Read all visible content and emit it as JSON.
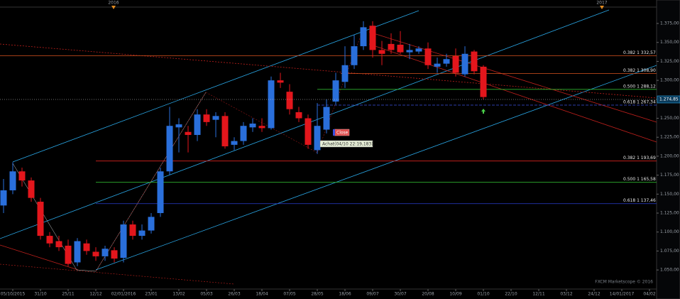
{
  "chart_data": {
    "type": "candlestick",
    "up_color": "#2a6fdb",
    "down_color": "#e3161c",
    "ylim": [
      1026.7,
      1394.7
    ],
    "yticks": [
      {
        "value": 1050,
        "label": "1.050,00"
      },
      {
        "value": 1075,
        "label": "1.075,00"
      },
      {
        "value": 1100,
        "label": "1.100,00"
      },
      {
        "value": 1125,
        "label": "1.125,00"
      },
      {
        "value": 1150,
        "label": "1.150,00"
      },
      {
        "value": 1175,
        "label": "1.175,00"
      },
      {
        "value": 1200,
        "label": "1.200,00"
      },
      {
        "value": 1225,
        "label": "1.225,00"
      },
      {
        "value": 1250,
        "label": "1.250,00"
      },
      {
        "value": 1300,
        "label": "1.300,00"
      },
      {
        "value": 1325,
        "label": "1.325,00"
      },
      {
        "value": 1350,
        "label": "1.350,00"
      },
      {
        "value": 1375,
        "label": "1.375,00"
      }
    ],
    "categories": [
      null,
      "05/10/2015",
      null,
      null,
      "31/10",
      null,
      null,
      "25/11",
      null,
      null,
      "12/12",
      null,
      null,
      "02/01/2016",
      null,
      null,
      "23/01",
      null,
      null,
      "13/02",
      null,
      null,
      "05/03",
      null,
      null,
      "26/03",
      null,
      null,
      "18/04",
      null,
      null,
      "07/05",
      null,
      null,
      "28/05",
      null,
      null,
      "18/06",
      null,
      null,
      "09/07",
      null,
      null,
      "30/07",
      null,
      null,
      "20/08",
      null,
      null,
      "10/09",
      null,
      null,
      "01/10",
      null,
      null,
      "22/10",
      null,
      null,
      "12/11",
      null,
      null,
      "03/12",
      null,
      null,
      "24/12",
      null,
      null,
      "14/01/2017",
      null,
      null,
      "04/02"
    ],
    "open": [
      1135,
      1155,
      1180,
      1168,
      1140,
      1095,
      1088,
      1082,
      1060,
      1085,
      1074,
      1068,
      1076,
      1066,
      1110,
      1095,
      1102,
      1125,
      1180,
      1238,
      1232,
      1228,
      1255,
      1248,
      1253,
      1215,
      1220,
      1238,
      1240,
      1237,
      1300,
      1285,
      1258,
      1250,
      1208,
      1235,
      1272,
      1298,
      1320,
      1345,
      1372,
      1340,
      1348,
      1347,
      1337,
      1338,
      1342,
      1318,
      1322,
      1332,
      1308,
      1338,
      1318,
      null,
      null,
      null,
      null,
      null,
      null,
      null,
      null,
      null,
      null,
      null,
      null,
      null,
      null,
      null,
      null,
      null,
      null
    ],
    "high": [
      1170,
      1192,
      1185,
      1172,
      1145,
      1100,
      1095,
      1090,
      1092,
      1090,
      1080,
      1082,
      1080,
      1115,
      1115,
      1110,
      1125,
      1185,
      1265,
      1250,
      1240,
      1262,
      1262,
      1258,
      1258,
      1225,
      1245,
      1250,
      1250,
      1305,
      1310,
      1295,
      1265,
      1255,
      1270,
      1275,
      1310,
      1345,
      1360,
      1378,
      1378,
      1352,
      1362,
      1365,
      1348,
      1345,
      1350,
      1330,
      1335,
      1342,
      1345,
      1340,
      1320,
      null,
      null,
      null,
      null,
      null,
      null,
      null,
      null,
      null,
      null,
      null,
      null,
      null,
      null,
      null,
      null,
      null,
      null
    ],
    "low": [
      1125,
      1150,
      1160,
      1140,
      1090,
      1080,
      1075,
      1055,
      1055,
      1070,
      1062,
      1062,
      1060,
      1060,
      1090,
      1090,
      1098,
      1120,
      1175,
      1205,
      1205,
      1220,
      1240,
      1225,
      1210,
      1208,
      1215,
      1232,
      1232,
      1235,
      1290,
      1255,
      1245,
      1210,
      1203,
      1230,
      1268,
      1290,
      1315,
      1340,
      1330,
      1320,
      1335,
      1335,
      1328,
      1335,
      1315,
      1310,
      1318,
      1305,
      1305,
      1308,
      1275,
      null,
      null,
      null,
      null,
      null,
      null,
      null,
      null,
      null,
      null,
      null,
      null,
      null,
      null,
      null,
      null,
      null,
      null
    ],
    "close": [
      1155,
      1180,
      1168,
      1145,
      1095,
      1085,
      1080,
      1058,
      1088,
      1075,
      1068,
      1078,
      1065,
      1110,
      1095,
      1102,
      1120,
      1180,
      1240,
      1242,
      1228,
      1255,
      1245,
      1253,
      1213,
      1220,
      1240,
      1243,
      1237,
      1300,
      1297,
      1262,
      1250,
      1215,
      1240,
      1265,
      1300,
      1320,
      1345,
      1370,
      1340,
      1335,
      1340,
      1337,
      1340,
      1342,
      1320,
      1322,
      1328,
      1310,
      1335,
      1312,
      1278,
      null,
      null,
      null,
      null,
      null,
      null,
      null,
      null,
      null,
      null,
      null,
      null,
      null,
      null,
      null,
      null,
      null,
      null
    ],
    "levels": [
      {
        "value": 1332.57,
        "label": "0.382 1 332,57",
        "color": "#d9531e"
      },
      {
        "value": 1308.9,
        "label": "0.382 1 308,90",
        "color": "#d9531e"
      },
      {
        "value": 1288.12,
        "label": "0.500 1 288,12",
        "color": "#2fb52f"
      },
      {
        "value": 1267.34,
        "label": "0.618 1 267,34",
        "color": "#3a4fe0"
      },
      {
        "value": 1193.69,
        "label": "0.382 1 193,69",
        "color": "#d9231e"
      },
      {
        "value": 1165.58,
        "label": "0.500 1 165,58",
        "color": "#2fb52f"
      },
      {
        "value": 1137.46,
        "label": "0.618 1 137,46",
        "color": "#2a3fd0"
      }
    ],
    "current_price": {
      "value": 1274.85,
      "label": "1.274,85"
    },
    "top_labels": [
      "2016",
      "2017"
    ],
    "annotations": {
      "order": "Achat(04/10 22:19,183)",
      "close": "Close",
      "watermark": "FXCM Marketscope © 2016"
    }
  }
}
